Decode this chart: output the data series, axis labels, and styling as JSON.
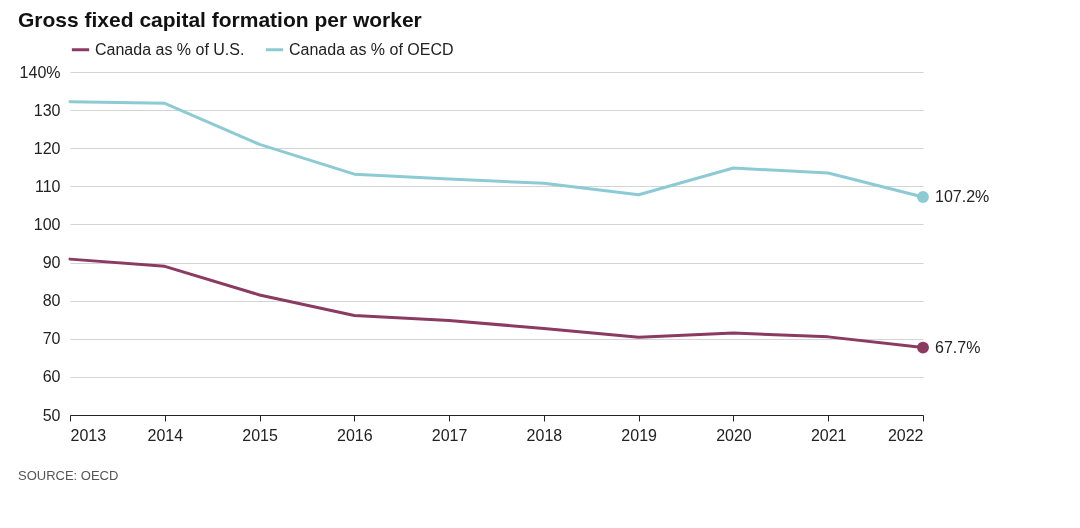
{
  "chart_data": {
    "type": "line",
    "title": "Gross fixed capital formation per worker",
    "x": [
      2013,
      2014,
      2015,
      2016,
      2017,
      2018,
      2019,
      2020,
      2021,
      2022
    ],
    "series": [
      {
        "name": "Canada as % of U.S.",
        "color": "#8b3a62",
        "values": [
          90.9,
          89.0,
          81.5,
          76.1,
          74.8,
          72.7,
          70.4,
          71.5,
          70.5,
          67.7
        ],
        "value_labels": [
          null,
          null,
          null,
          null,
          null,
          null,
          null,
          null,
          null,
          "67.7%"
        ]
      },
      {
        "name": "Canada as % of OECD",
        "color": "#8ccbd3",
        "values": [
          132.2,
          131.8,
          121.0,
          113.2,
          111.9,
          110.8,
          107.8,
          114.8,
          113.5,
          107.2
        ],
        "value_labels": [
          null,
          null,
          null,
          null,
          null,
          null,
          null,
          null,
          null,
          "107.2%"
        ]
      }
    ],
    "xlim": [
      2013,
      2022
    ],
    "xticks": [
      2013,
      2014,
      2015,
      2016,
      2017,
      2018,
      2019,
      2020,
      2021,
      2022
    ],
    "ylim": [
      50,
      140
    ],
    "yticks": [
      50,
      60,
      70,
      80,
      90,
      100,
      110,
      120,
      130,
      {
        "value": 140,
        "label": "140%"
      }
    ],
    "grid": "y",
    "legend": "top left",
    "line_style": "solid",
    "annotations": [
      "SOURCE: OECD"
    ]
  }
}
